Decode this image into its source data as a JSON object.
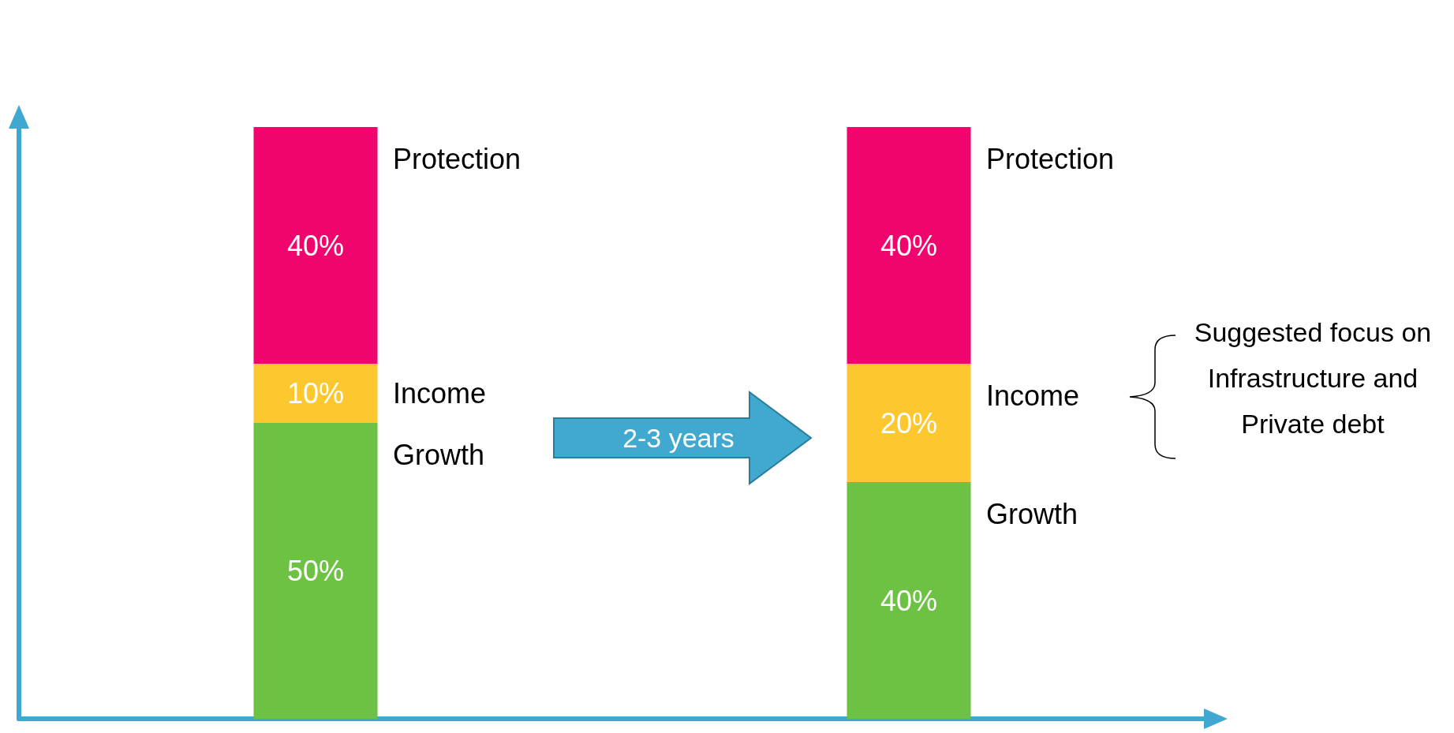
{
  "chart_data": {
    "type": "bar",
    "stacked": true,
    "tick_labels": false,
    "categories": [
      null,
      null
    ],
    "series": [
      {
        "name": "Growth",
        "color": "#6dc143",
        "values": [
          50,
          40
        ],
        "value_labels": [
          "50%",
          "40%"
        ]
      },
      {
        "name": "Income",
        "color": "#fdc82f",
        "values": [
          10,
          20
        ],
        "value_labels": [
          "10%",
          "20%"
        ]
      },
      {
        "name": "Protection",
        "color": "#f0046e",
        "values": [
          40,
          40
        ],
        "value_labels": [
          "40%",
          "40%"
        ]
      }
    ],
    "annotations": [
      "2-3 years",
      "Suggested focus on Infrastructure and Private debt"
    ]
  }
}
